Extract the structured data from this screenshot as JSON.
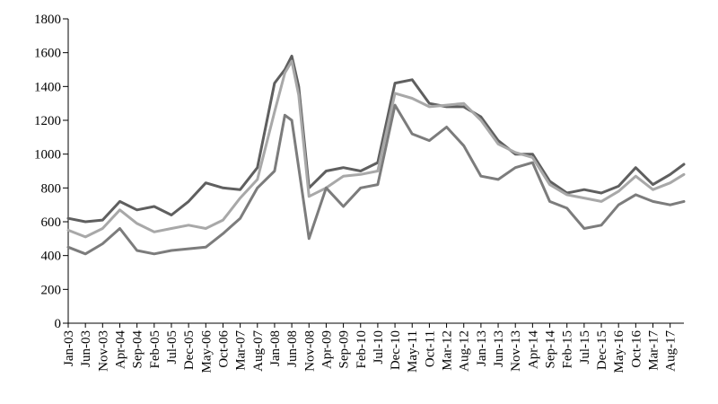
{
  "chart_data": {
    "type": "line",
    "title": "",
    "xlabel": "",
    "ylabel": "",
    "ylim": [
      0,
      1800
    ],
    "y_ticks": [
      "0",
      "200",
      "400",
      "600",
      "800",
      "1000",
      "1200",
      "1400",
      "1600",
      "1800"
    ],
    "x_tick_labels": [
      "Jan-03",
      "Jun-03",
      "Nov-03",
      "Apr-04",
      "Sep-04",
      "Feb-05",
      "Jul-05",
      "Dec-05",
      "May-06",
      "Oct-06",
      "Mar-07",
      "Aug-07",
      "Jan-08",
      "Jun-08",
      "Nov-08",
      "Apr-09",
      "Sep-09",
      "Feb-10",
      "Jul-10",
      "Dec-10",
      "May-11",
      "Oct-11",
      "Mar-12",
      "Aug-12",
      "Jan-13",
      "Jun-13",
      "Nov-13",
      "Apr-14",
      "Sep-14",
      "Feb-15",
      "Jul-15",
      "Dec-15",
      "May-16",
      "Oct-16",
      "Mar-17",
      "Aug-17"
    ],
    "x": [
      "Jan-03",
      "Jun-03",
      "Nov-03",
      "Apr-04",
      "Sep-04",
      "Feb-05",
      "Jul-05",
      "Dec-05",
      "May-06",
      "Oct-06",
      "Mar-07",
      "Aug-07",
      "Jan-08",
      "Apr-08",
      "Jun-08",
      "Aug-08",
      "Nov-08",
      "Apr-09",
      "Sep-09",
      "Feb-10",
      "Jul-10",
      "Dec-10",
      "May-11",
      "Oct-11",
      "Mar-12",
      "Aug-12",
      "Jan-13",
      "Jun-13",
      "Nov-13",
      "Apr-14",
      "Sep-14",
      "Feb-15",
      "Jul-15",
      "Dec-15",
      "May-16",
      "Oct-16",
      "Mar-17",
      "Aug-17",
      "Dec-17"
    ],
    "grid": false,
    "legend": "none",
    "series": [
      {
        "color": "#5f5f5f",
        "values": [
          620,
          600,
          610,
          720,
          670,
          690,
          640,
          720,
          830,
          800,
          790,
          920,
          1420,
          1500,
          1580,
          1400,
          800,
          900,
          920,
          900,
          950,
          1420,
          1440,
          1300,
          1280,
          1280,
          1220,
          1080,
          1000,
          1000,
          840,
          770,
          790,
          770,
          810,
          920,
          820,
          880,
          940
        ]
      },
      {
        "color": "#a8a8a8",
        "values": [
          550,
          510,
          560,
          670,
          590,
          540,
          560,
          580,
          560,
          610,
          740,
          850,
          1250,
          1480,
          1550,
          1350,
          750,
          800,
          870,
          880,
          900,
          1360,
          1330,
          1280,
          1290,
          1300,
          1200,
          1060,
          1010,
          980,
          820,
          760,
          740,
          720,
          780,
          870,
          790,
          830,
          880
        ]
      },
      {
        "color": "#7c7c7c",
        "values": [
          450,
          410,
          470,
          560,
          430,
          410,
          430,
          440,
          450,
          530,
          620,
          800,
          900,
          1230,
          1200,
          920,
          500,
          800,
          690,
          800,
          820,
          1290,
          1120,
          1080,
          1160,
          1050,
          870,
          850,
          920,
          950,
          720,
          680,
          560,
          580,
          700,
          760,
          720,
          700,
          720
        ]
      }
    ]
  }
}
